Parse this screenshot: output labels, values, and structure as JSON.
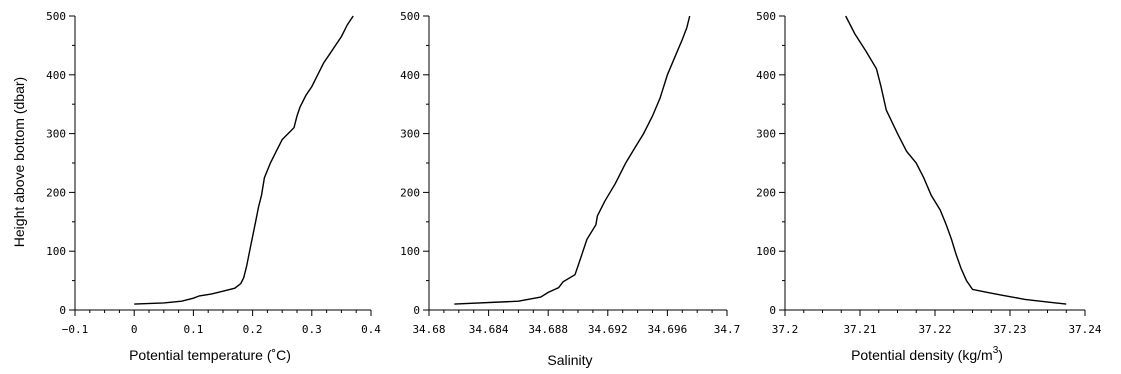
{
  "chart_data": [
    {
      "type": "line",
      "xlabel": "Potential temperature (˚C)",
      "ylabel": "Height above bottom (dbar)",
      "xlim": [
        -0.1,
        0.4
      ],
      "ylim": [
        0,
        500
      ],
      "xticks": [
        "−0.1",
        "0",
        "0.1",
        "0.2",
        "0.3",
        "0.4"
      ],
      "xtick_values": [
        -0.1,
        0,
        0.1,
        0.2,
        0.3,
        0.4
      ],
      "yticks": [
        "0",
        "100",
        "200",
        "300",
        "400",
        "500"
      ],
      "ytick_values": [
        0,
        100,
        200,
        300,
        400,
        500
      ],
      "series": [
        {
          "x": [
            0.0,
            0.05,
            0.08,
            0.1,
            0.11,
            0.13,
            0.15,
            0.17,
            0.18,
            0.185,
            0.19,
            0.195,
            0.2,
            0.205,
            0.21,
            0.215,
            0.22,
            0.23,
            0.24,
            0.25,
            0.26,
            0.27,
            0.275,
            0.28,
            0.29,
            0.3,
            0.31,
            0.32,
            0.33,
            0.34,
            0.35,
            0.36,
            0.37
          ],
          "y": [
            10,
            12,
            15,
            20,
            24,
            27,
            32,
            37,
            45,
            55,
            75,
            100,
            125,
            150,
            175,
            195,
            225,
            250,
            270,
            290,
            300,
            310,
            330,
            345,
            365,
            380,
            400,
            420,
            435,
            450,
            465,
            485,
            500
          ]
        }
      ]
    },
    {
      "type": "line",
      "xlabel": "Salinity",
      "ylabel": "",
      "xlim": [
        34.68,
        34.7
      ],
      "ylim": [
        0,
        500
      ],
      "xticks": [
        "34.68",
        "34.684",
        "34.688",
        "34.692",
        "34.696",
        "34.7"
      ],
      "xtick_values": [
        34.68,
        34.684,
        34.688,
        34.692,
        34.696,
        34.7
      ],
      "yticks": [
        "0",
        "100",
        "200",
        "300",
        "400",
        "500"
      ],
      "ytick_values": [
        0,
        100,
        200,
        300,
        400,
        500
      ],
      "series": [
        {
          "x": [
            34.6817,
            34.686,
            34.6875,
            34.688,
            34.6887,
            34.689,
            34.6898,
            34.6902,
            34.6906,
            34.6912,
            34.6913,
            34.6918,
            34.6925,
            34.6932,
            34.6938,
            34.6944,
            34.695,
            34.6955,
            34.696,
            34.6965,
            34.697,
            34.6973,
            34.6975
          ],
          "y": [
            10,
            15,
            22,
            30,
            38,
            48,
            60,
            90,
            120,
            145,
            160,
            185,
            215,
            250,
            275,
            300,
            330,
            360,
            400,
            430,
            460,
            480,
            500
          ]
        }
      ]
    },
    {
      "type": "line",
      "xlabel": "Potential density (kg/m",
      "xlabel_sup": "3",
      "xlabel_tail": ")",
      "ylabel": "",
      "xlim": [
        37.2,
        37.24
      ],
      "ylim": [
        0,
        500
      ],
      "xticks": [
        "37.2",
        "37.21",
        "37.22",
        "37.23",
        "37.24"
      ],
      "xtick_values": [
        37.2,
        37.21,
        37.22,
        37.23,
        37.24
      ],
      "yticks": [
        "0",
        "100",
        "200",
        "300",
        "400",
        "500"
      ],
      "ytick_values": [
        0,
        100,
        200,
        300,
        400,
        500
      ],
      "series": [
        {
          "x": [
            37.2081,
            37.2093,
            37.2108,
            37.2122,
            37.2128,
            37.2135,
            37.215,
            37.2162,
            37.2175,
            37.2185,
            37.2195,
            37.2207,
            37.2215,
            37.2222,
            37.2228,
            37.2235,
            37.2242,
            37.225,
            37.227,
            37.229,
            37.232,
            37.2355,
            37.2375
          ],
          "y": [
            500,
            470,
            440,
            410,
            380,
            340,
            300,
            270,
            250,
            225,
            195,
            170,
            145,
            120,
            95,
            70,
            50,
            35,
            30,
            25,
            18,
            13,
            10
          ]
        }
      ]
    }
  ]
}
